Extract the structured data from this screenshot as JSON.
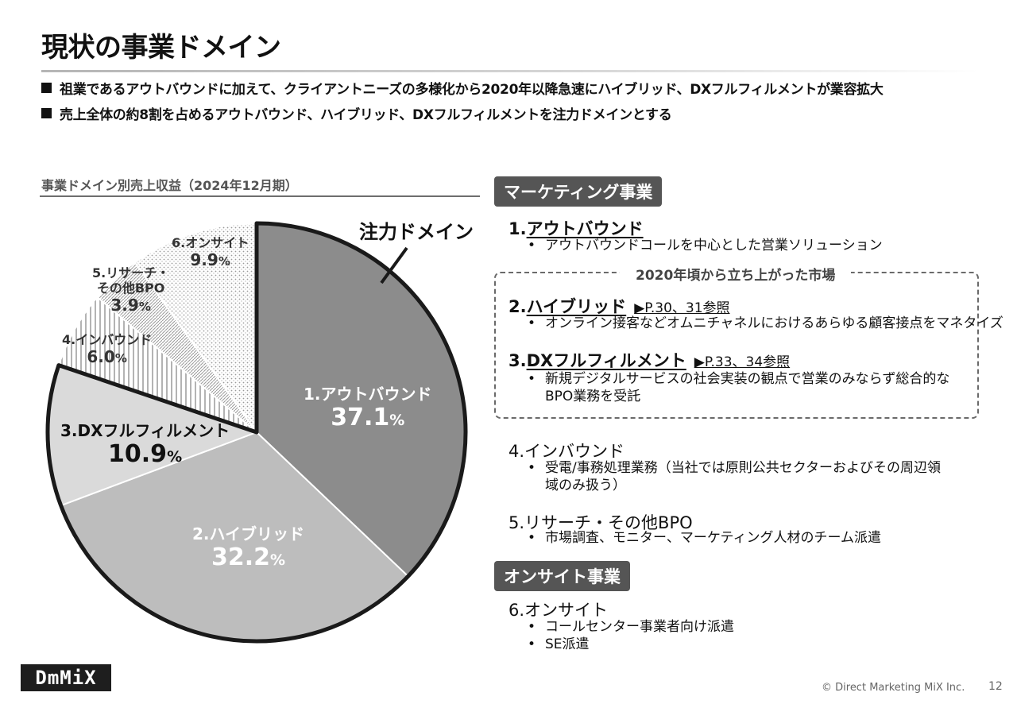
{
  "header": {
    "title": "現状の事業ドメイン"
  },
  "bullets": [
    "祖業であるアウトバウンドに加えて、クライアントニーズの多様化から2020年以降急速にハイブリッド、DXフルフィルメントが業容拡大",
    "売上全体の約8割を占めるアウトバウンド、ハイブリッド、DXフルフィルメントを注力ドメインとする"
  ],
  "chart_heading": "事業ドメイン別売上収益（2024年12月期）",
  "chart_callout": "注力ドメイン",
  "chart_data": {
    "type": "pie",
    "title": "事業ドメイン別売上収益（2024年12月期）",
    "start_angle_deg": 0,
    "direction": "clockwise",
    "unit": "%",
    "slices": [
      {
        "label": "1.アウトバウンド",
        "value": 37.1,
        "value_text": "37.1",
        "color": "#8c8c8c",
        "pattern": "solid",
        "focus": true
      },
      {
        "label": "2.ハイブリッド",
        "value": 32.2,
        "value_text": "32.2",
        "color": "#bdbdbd",
        "pattern": "solid",
        "focus": true
      },
      {
        "label": "3.DXフルフィルメント",
        "value": 10.9,
        "value_text": "10.9",
        "color": "#dadada",
        "pattern": "solid",
        "focus": true
      },
      {
        "label": "4.インバウンド",
        "value": 6.0,
        "value_text": "6.0",
        "color": "#9a9a9a",
        "pattern": "vertical-lines",
        "focus": false
      },
      {
        "label": "5.リサーチ・その他BPO",
        "value": 3.9,
        "value_text": "3.9",
        "color": "#9a9a9a",
        "pattern": "fine-diagonal",
        "focus": false
      },
      {
        "label": "6.オンサイト",
        "value": 9.9,
        "value_text": "9.9",
        "color": "#a8a8a8",
        "pattern": "dots",
        "focus": false
      }
    ]
  },
  "pie_labels": {
    "s1": {
      "name": "1.アウトバウンド",
      "value": "37.1",
      "unit": "%"
    },
    "s2": {
      "name": "2.ハイブリッド",
      "value": "32.2",
      "unit": "%"
    },
    "s3": {
      "name": "3.DXフルフィルメント",
      "value": "10.9",
      "unit": "%"
    },
    "s4": {
      "name": "4.インバウンド",
      "value": "6.0",
      "unit": "%"
    },
    "s5": {
      "name_line1": "5.リサーチ・",
      "name_line2": "その他BPO",
      "value": "3.9",
      "unit": "%"
    },
    "s6": {
      "name": "6.オンサイト",
      "value": "9.9",
      "unit": "%"
    }
  },
  "marketing": {
    "tag": "マーケティング事業",
    "item1": {
      "num": "1.",
      "title": "アウトバウンド",
      "desc": "アウトバウンドコールを中心とした営業ソリューション"
    },
    "box_label": "2020年頃から立ち上がった市場",
    "item2": {
      "num": "2.",
      "title": "ハイブリッド",
      "ref": "▶P.30、31参照",
      "desc": "オンライン接客などオムニチャネルにおけるあらゆる顧客接点をマネタイズ"
    },
    "item3": {
      "num": "3.",
      "title": "DXフルフィルメント",
      "ref": "▶P.33、34参照",
      "desc_line1": "新規デジタルサービスの社会実装の観点で営業のみならず総合的な",
      "desc_line2": "BPO業務を受託"
    },
    "item4": {
      "title": "4.インバウンド",
      "desc_line1": "受電/事務処理業務（当社では原則公共セクターおよびその周辺領",
      "desc_line2": "域のみ扱う）"
    },
    "item5": {
      "title": "5.リサーチ・その他BPO",
      "desc": "市場調査、モニター、マーケティング人材のチーム派遣"
    }
  },
  "onsite": {
    "tag": "オンサイト事業",
    "item6": {
      "title": "6.オンサイト",
      "desc1": "コールセンター事業者向け派遣",
      "desc2": "SE派遣"
    }
  },
  "bullet_glyph": "•",
  "footer": {
    "logo": "DmMiX",
    "copyright": "© Direct Marketing MiX Inc.",
    "page": "12"
  }
}
